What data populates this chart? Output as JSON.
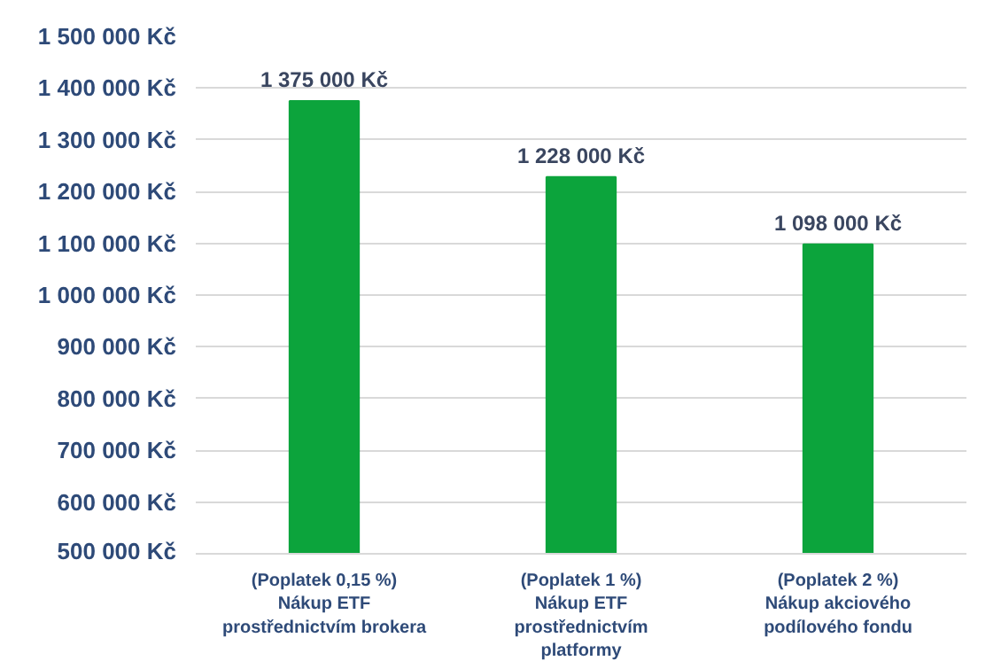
{
  "chart_data": {
    "type": "bar",
    "categories": [
      "(Poplatek 0,15 %)\nNákup ETF\nprostřednictvím brokera",
      "(Poplatek 1 %)\nNákup ETF\nprostřednictvím\nplatformy",
      "(Poplatek 2 %)\nNákup akciového\npodílového fondu"
    ],
    "values": [
      1375000,
      1228000,
      1098000
    ],
    "value_labels": [
      "1 375 000 Kč",
      "1 228 000 Kč",
      "1 098 000 Kč"
    ],
    "color": "#0ca43c",
    "ylim": [
      500000,
      1500000
    ],
    "yticks": [
      {
        "value": 500000,
        "label": "500 000 Kč"
      },
      {
        "value": 600000,
        "label": "600 000 Kč"
      },
      {
        "value": 700000,
        "label": "700 000 Kč"
      },
      {
        "value": 800000,
        "label": "800 000 Kč"
      },
      {
        "value": 900000,
        "label": "900 000 Kč"
      },
      {
        "value": 1000000,
        "label": "1 000 000 Kč"
      },
      {
        "value": 1100000,
        "label": "1 100 000 Kč"
      },
      {
        "value": 1200000,
        "label": "1 200 000 Kč"
      },
      {
        "value": 1300000,
        "label": "1 300 000 Kč"
      },
      {
        "value": 1400000,
        "label": "1 400 000 Kč"
      },
      {
        "value": 1500000,
        "label": "1 500 000 Kč"
      }
    ],
    "grid": "y"
  }
}
